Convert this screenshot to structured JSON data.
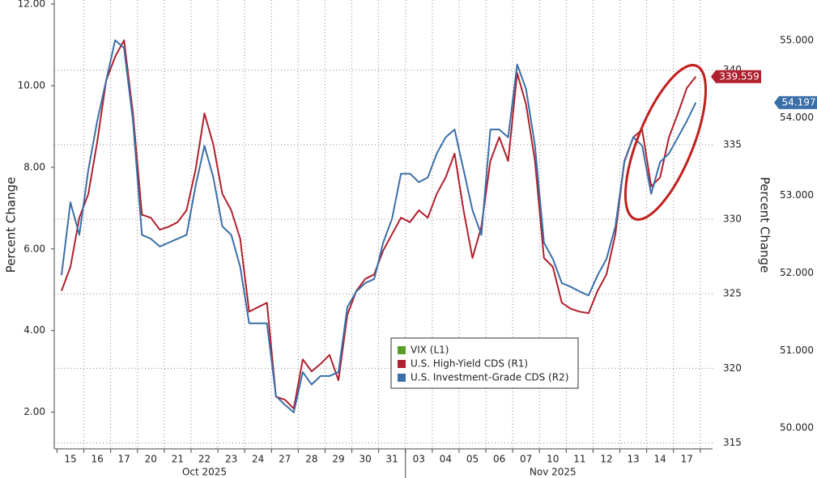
{
  "chart_data": {
    "type": "line",
    "ylabel": "Percent Change",
    "y2label": "Percent Change",
    "categories": [
      null,
      "15",
      null,
      null,
      "16",
      null,
      null,
      "17",
      null,
      null,
      "20",
      null,
      null,
      "21",
      null,
      null,
      "22",
      null,
      null,
      "23",
      null,
      null,
      "24",
      null,
      null,
      "27",
      null,
      null,
      "28",
      null,
      null,
      "29",
      null,
      null,
      "30",
      null,
      null,
      "31",
      null,
      null,
      "03",
      null,
      null,
      "04",
      null,
      null,
      "05",
      null,
      null,
      "06",
      null,
      null,
      "07",
      null,
      null,
      "10",
      null,
      null,
      "11",
      null,
      null,
      "12",
      null,
      null,
      "13",
      null,
      null,
      "14",
      null,
      null,
      "17",
      null
    ],
    "month_labels": [
      "Oct 2025",
      "Nov 2025"
    ],
    "series": [
      {
        "name": "VIX (L1)",
        "color": "#5a9e2a",
        "axis": "y",
        "values": [
          null,
          null,
          null,
          null,
          null,
          null,
          null,
          null,
          null,
          null,
          null,
          null,
          null,
          null,
          null,
          null,
          null,
          null,
          null,
          null,
          null,
          null,
          null,
          null,
          null,
          null,
          null,
          null,
          null,
          null,
          null,
          null,
          null,
          null,
          null,
          null,
          null,
          null,
          null,
          null,
          null,
          null,
          null,
          null,
          null,
          null,
          null,
          null,
          null,
          null,
          null,
          null,
          null,
          null,
          null,
          null,
          null,
          null,
          null,
          null,
          null,
          null,
          null,
          null,
          null,
          null,
          null,
          null,
          null,
          null,
          null,
          null
        ]
      },
      {
        "name": "U.S. High-Yield CDS (R1)",
        "color": "#b0202e",
        "axis": "y2",
        "values": [
          325.2,
          326.8,
          330.1,
          331.7,
          335.2,
          339.3,
          340.9,
          342.0,
          337.1,
          330.3,
          330.1,
          329.3,
          329.5,
          329.8,
          330.6,
          333.3,
          337.1,
          335.0,
          331.7,
          330.6,
          328.7,
          323.8,
          324.1,
          324.4,
          318.1,
          317.9,
          317.3,
          320.6,
          319.8,
          320.3,
          320.9,
          319.2,
          323.6,
          325.2,
          326.0,
          326.3,
          327.9,
          329.0,
          330.1,
          329.8,
          330.6,
          330.1,
          331.7,
          332.8,
          334.4,
          330.6,
          327.4,
          329.5,
          333.9,
          335.5,
          333.9,
          339.8,
          337.7,
          333.9,
          327.4,
          326.8,
          324.4,
          324.0,
          323.8,
          323.7,
          325.2,
          326.3,
          329.0,
          333.9,
          335.5,
          336.0,
          332.2,
          332.8,
          335.5,
          337.1,
          338.8,
          339.559
        ]
      },
      {
        "name": "U.S. Investment-Grade CDS (R2)",
        "color": "#3b6fa8",
        "axis": "y3",
        "values": [
          51.97,
          52.91,
          52.49,
          53.33,
          53.96,
          54.48,
          55.0,
          54.9,
          53.96,
          52.49,
          52.44,
          52.34,
          52.39,
          52.44,
          52.49,
          53.12,
          53.64,
          53.23,
          52.6,
          52.49,
          52.08,
          51.35,
          51.35,
          51.35,
          50.41,
          50.3,
          50.2,
          50.72,
          50.56,
          50.67,
          50.67,
          50.72,
          51.56,
          51.76,
          51.87,
          51.92,
          52.39,
          52.7,
          53.28,
          53.28,
          53.17,
          53.23,
          53.54,
          53.75,
          53.85,
          53.33,
          52.81,
          52.49,
          53.85,
          53.85,
          53.75,
          54.69,
          54.37,
          53.64,
          52.39,
          52.18,
          51.87,
          51.82,
          51.76,
          51.71,
          51.97,
          52.18,
          52.6,
          53.43,
          53.75,
          53.64,
          53.02,
          53.43,
          53.54,
          53.75,
          53.96,
          54.197
        ]
      }
    ],
    "ylim": [
      1.1,
      12.1
    ],
    "yticks": [
      {
        "value": 2,
        "label": "2.00"
      },
      {
        "value": 4,
        "label": "4.00"
      },
      {
        "value": 6,
        "label": "6.00"
      },
      {
        "value": 8,
        "label": "8.00"
      },
      {
        "value": 10,
        "label": "10.00"
      },
      {
        "value": 12,
        "label": "12.00"
      }
    ],
    "y2lim": [
      314.6,
      344.7
    ],
    "y2ticks": [
      315,
      320,
      325,
      330,
      335,
      340
    ],
    "y3lim": [
      49.73,
      55.52
    ],
    "y3ticks": [
      {
        "value": 50,
        "label": "50.000"
      },
      {
        "value": 51,
        "label": "51.000"
      },
      {
        "value": 52,
        "label": "52.000"
      },
      {
        "value": 53,
        "label": "53.000"
      },
      {
        "value": 54,
        "label": "54.000"
      },
      {
        "value": 55,
        "label": "55.000"
      }
    ],
    "grid": true,
    "legend": "lower center"
  }
}
